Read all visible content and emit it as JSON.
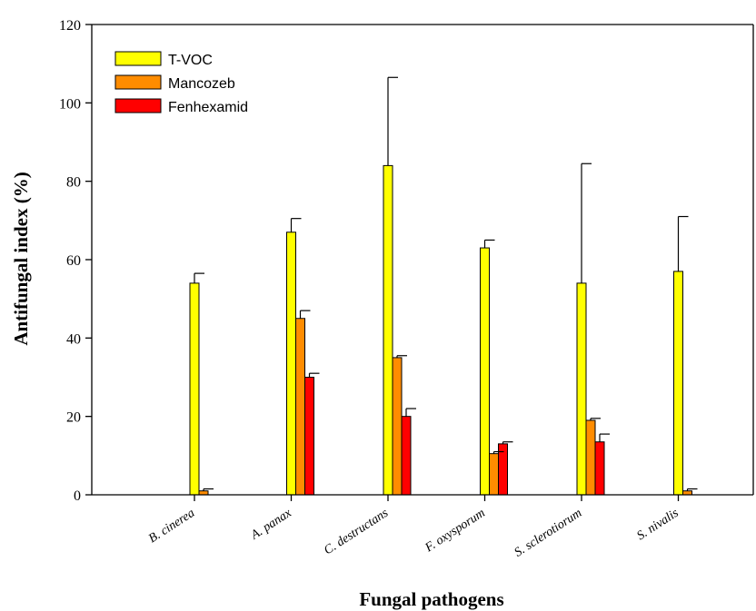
{
  "chart_data": {
    "type": "bar",
    "title": "",
    "xlabel": "Fungal pathogens",
    "ylabel": "Antifungal index (%)",
    "ylim": [
      0,
      120
    ],
    "yticks": [
      "0",
      "20",
      "40",
      "60",
      "80",
      "100",
      "120"
    ],
    "categories": [
      "B. cinerea",
      "A. panax",
      "C. destructans",
      "F. oxysporum",
      "S. sclerotiorum",
      "S. nivalis"
    ],
    "legend_position": "top-left",
    "grid": false,
    "error_bars": true,
    "series": [
      {
        "name": "T-VOC",
        "color": "#ffff00",
        "values": [
          54,
          67,
          84,
          63,
          54,
          57
        ],
        "errors": [
          2.5,
          3.5,
          22.5,
          2,
          30.5,
          14
        ]
      },
      {
        "name": "Mancozeb",
        "color": "#ff8c00",
        "values": [
          1,
          45,
          35,
          10.5,
          19,
          1
        ],
        "errors": [
          0.5,
          2,
          0.5,
          0.5,
          0.5,
          0.5
        ]
      },
      {
        "name": "Fenhexamid",
        "color": "#ff0000",
        "values": [
          0,
          30,
          20,
          13,
          13.5,
          0
        ],
        "errors": [
          0,
          1,
          2,
          0.5,
          2,
          0
        ]
      }
    ]
  }
}
